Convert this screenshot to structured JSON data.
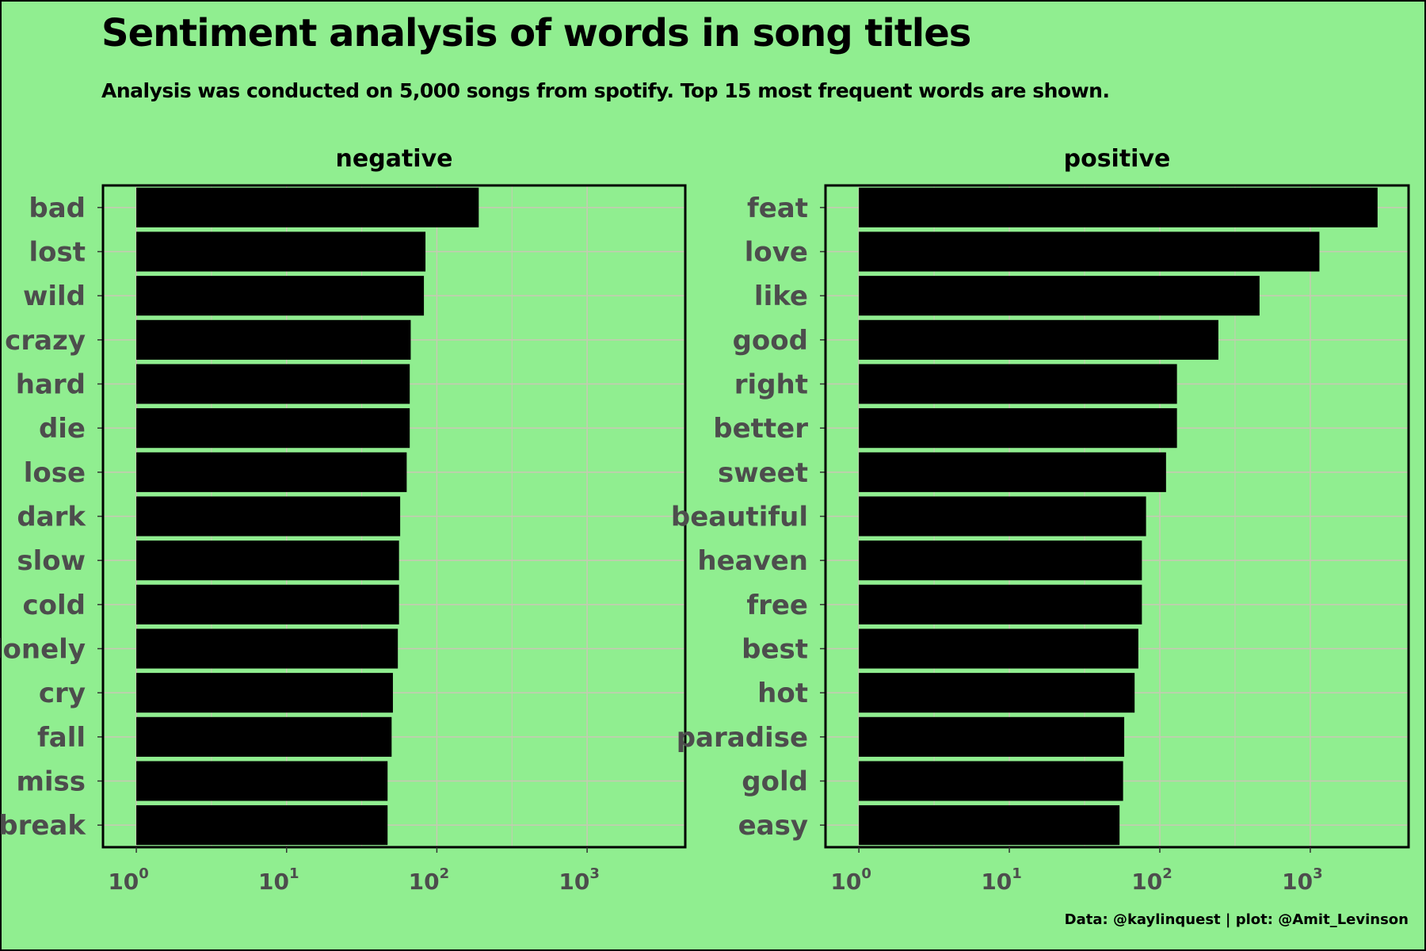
{
  "header": {
    "title": "Sentiment analysis of words in song titles",
    "subtitle": "Analysis was conducted on 5,000 songs from spotify. Top 15 most frequent words are shown.",
    "caption": "Data: @kaylinquest | plot: @Amit_Levinson"
  },
  "colors": {
    "background": "#90ee90",
    "bar": "#000000",
    "grid": "#c8c8b4",
    "label": "#4d4d4d"
  },
  "chart_data": [
    {
      "type": "bar",
      "orientation": "horizontal",
      "facet": "negative",
      "xscale": "log10",
      "xlim": [
        0.6,
        4500
      ],
      "xticks": [
        1,
        10,
        100,
        1000
      ],
      "xtick_labels": [
        {
          "base": "10",
          "exp": "0"
        },
        {
          "base": "10",
          "exp": "1"
        },
        {
          "base": "10",
          "exp": "2"
        },
        {
          "base": "10",
          "exp": "3"
        }
      ],
      "grid": true,
      "categories": [
        "bad",
        "lost",
        "wild",
        "crazy",
        "hard",
        "die",
        "lose",
        "dark",
        "slow",
        "cold",
        "lonely",
        "cry",
        "fall",
        "miss",
        "break"
      ],
      "values": [
        190,
        84,
        82,
        67,
        66,
        66,
        63,
        57,
        56,
        56,
        55,
        51,
        50,
        47,
        47
      ]
    },
    {
      "type": "bar",
      "orientation": "horizontal",
      "facet": "positive",
      "xscale": "log10",
      "xlim": [
        0.6,
        4500
      ],
      "xticks": [
        1,
        10,
        100,
        1000
      ],
      "xtick_labels": [
        {
          "base": "10",
          "exp": "0"
        },
        {
          "base": "10",
          "exp": "1"
        },
        {
          "base": "10",
          "exp": "2"
        },
        {
          "base": "10",
          "exp": "3"
        }
      ],
      "grid": true,
      "categories": [
        "feat",
        "love",
        "like",
        "good",
        "right",
        "better",
        "sweet",
        "beautiful",
        "heaven",
        "free",
        "best",
        "hot",
        "paradise",
        "gold",
        "easy"
      ],
      "values": [
        2800,
        1150,
        460,
        245,
        130,
        130,
        110,
        81,
        76,
        76,
        72,
        68,
        58,
        57,
        54
      ]
    }
  ]
}
